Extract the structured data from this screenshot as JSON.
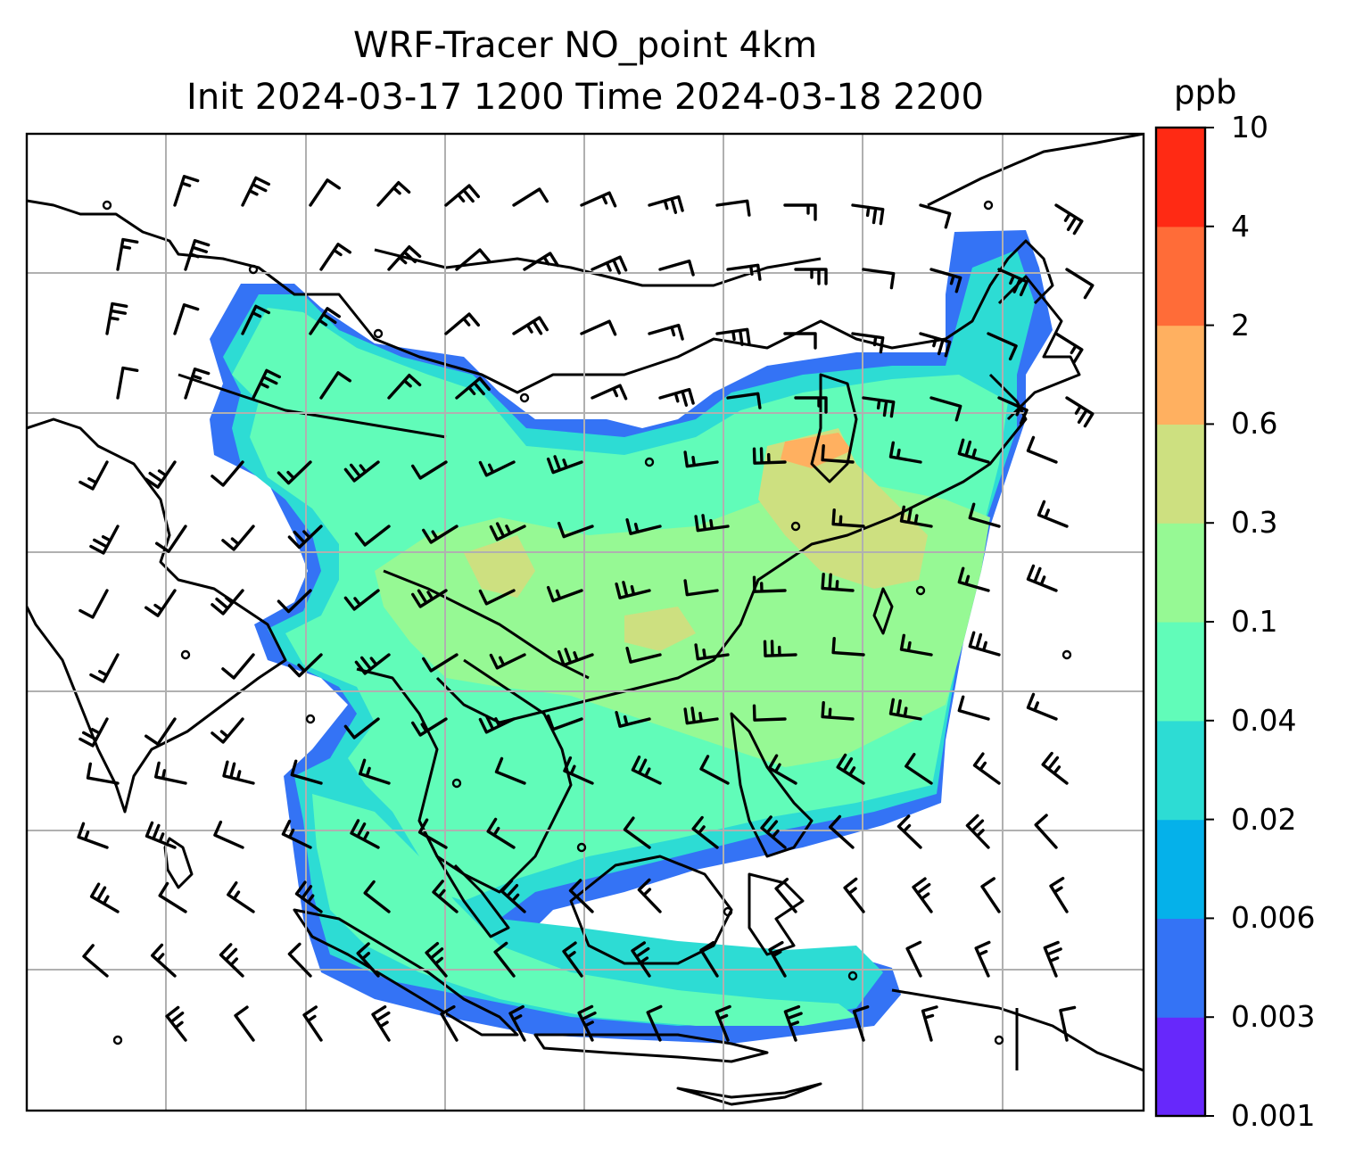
{
  "title": {
    "line1": "WRF-Tracer NO_point 4km",
    "line2": "Init 2024-03-17 1200 Time 2024-03-18 2200"
  },
  "colorbar": {
    "unit": "ppb",
    "levels": [
      "0.001",
      "0.003",
      "0.006",
      "0.02",
      "0.04",
      "0.1",
      "0.3",
      "0.6",
      "2",
      "4",
      "10"
    ],
    "colors": [
      "#6728fb",
      "#3473f5",
      "#05b1ea",
      "#2ddcd4",
      "#61fcb9",
      "#96f994",
      "#cde080",
      "#ffb060",
      "#ff6c38",
      "#ff2a14"
    ]
  },
  "map": {
    "coastline_color": "#000000",
    "gridline_color": "#b0b0b0",
    "barb_color": "#000000"
  }
}
